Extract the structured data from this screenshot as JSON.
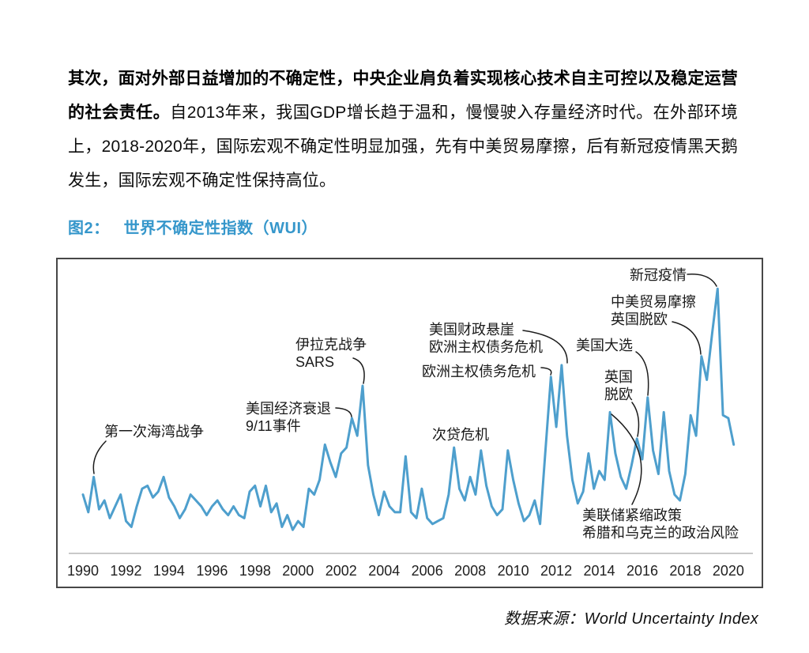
{
  "page": {
    "paragraph": {
      "bold": "其次，面对外部日益增加的不确定性，中央企业肩负着实现核心技术自主可控以及稳定运营的社会责任。",
      "regular": "自2013年来，我国GDP增长趋于温和，慢慢驶入存量经济时代。在外部环境上，2018-2020年，国际宏观不确定性明显加强，先有中美贸易摩擦，后有新冠疫情黑天鹅发生，国际宏观不确定性保持高位。"
    },
    "figure": {
      "label": "图2：",
      "title": "世界不确定性指数（WUI）"
    },
    "source": {
      "prefix": "数据来源：",
      "text": "World Uncertainty Index"
    }
  },
  "colors": {
    "accent_blue": "#3697CB",
    "line_blue": "#4E9FCD",
    "callout": "#1C1C1C",
    "axis_gray": "#C9C9C9",
    "frame_gray": "#474747",
    "tick_text": "#1F1F1F"
  },
  "chart_data": {
    "type": "line",
    "title": "世界不确定性指数（WUI）",
    "series_name": "World Uncertainty Index",
    "x_start_year": 1990,
    "points_per_year": 4,
    "x_end_year": 2020.25,
    "ylim": [
      0,
      100
    ],
    "grid": false,
    "legend": "none",
    "xticks": [
      "1990",
      "1992",
      "1994",
      "1996",
      "1998",
      "2000",
      "2002",
      "2004",
      "2006",
      "2008",
      "2010",
      "2012",
      "2014",
      "2016",
      "2018",
      "2020"
    ],
    "values": [
      20,
      14,
      26,
      15,
      18,
      12,
      16,
      20,
      11,
      9,
      16,
      22,
      23,
      19,
      21,
      26,
      19,
      16,
      12,
      15,
      20,
      18,
      16,
      13,
      16,
      18,
      15,
      13,
      16,
      13,
      12,
      21,
      23,
      16,
      23,
      14,
      17,
      9,
      13,
      8,
      11,
      9,
      22,
      20,
      25,
      37,
      31,
      26,
      34,
      36,
      46,
      40,
      57,
      30,
      20,
      13,
      21,
      16,
      14,
      14,
      33,
      14,
      12,
      22,
      12,
      10,
      11,
      12,
      20,
      36,
      22,
      18,
      26,
      20,
      35,
      23,
      16,
      13,
      15,
      35,
      25,
      17,
      11,
      13,
      18,
      10,
      35,
      60,
      43,
      64,
      40,
      25,
      17,
      21,
      34,
      22,
      28,
      25,
      48,
      34,
      26,
      22,
      30,
      39,
      32,
      53,
      35,
      27,
      48,
      28,
      20,
      18,
      27,
      47,
      40,
      67,
      59,
      75,
      90,
      47,
      46,
      37
    ],
    "annotations": [
      {
        "id": "gulf-war",
        "lines": [
          "第一次海湾战争"
        ]
      },
      {
        "id": "us-recession",
        "lines": [
          "美国经济衰退",
          "9/11事件"
        ]
      },
      {
        "id": "iraq-sars",
        "lines": [
          "伊拉克战争",
          "SARS"
        ]
      },
      {
        "id": "subprime",
        "lines": [
          "次贷危机"
        ]
      },
      {
        "id": "euro-crisis",
        "lines": [
          "欧洲主权债务危机"
        ]
      },
      {
        "id": "fiscal-cliff",
        "lines": [
          "美国财政悬崖",
          "欧洲主权债务危机"
        ]
      },
      {
        "id": "us-election",
        "lines": [
          "美国大选"
        ]
      },
      {
        "id": "brexit",
        "lines": [
          "英国",
          "脱欧"
        ]
      },
      {
        "id": "trade-war",
        "lines": [
          "中美贸易摩擦",
          "英国脱欧"
        ]
      },
      {
        "id": "covid",
        "lines": [
          "新冠疫情"
        ]
      },
      {
        "id": "fed-greece",
        "lines": [
          "美联储紧缩政策",
          "希腊和乌克兰的政治风险"
        ]
      }
    ]
  }
}
